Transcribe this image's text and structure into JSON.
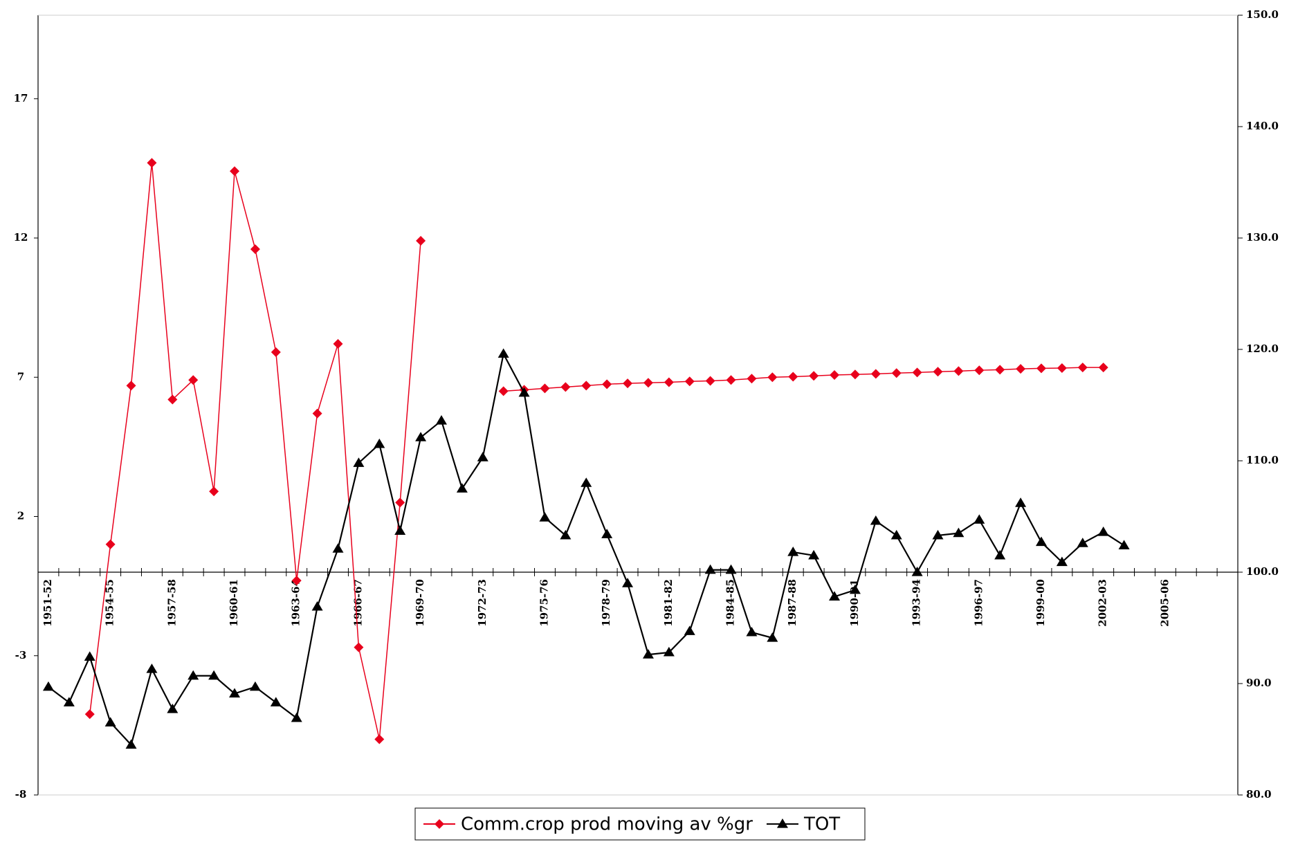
{
  "chart_data": {
    "type": "line",
    "categories": [
      "1951-52",
      null,
      null,
      "1954-55",
      null,
      null,
      "1957-58",
      null,
      null,
      "1960-61",
      null,
      null,
      "1963-64",
      null,
      null,
      "1966-67",
      null,
      null,
      "1969-70",
      null,
      null,
      "1972-73",
      null,
      null,
      "1975-76",
      null,
      null,
      "1978-79",
      null,
      null,
      "1981-82",
      null,
      null,
      "1984-85",
      null,
      null,
      "1987-88",
      null,
      null,
      "1990-91",
      null,
      null,
      "1993-94",
      null,
      null,
      "1996-97",
      null,
      null,
      "1999-00",
      null,
      null,
      "2002-03",
      null,
      null,
      "2005-06",
      null,
      null,
      null
    ],
    "series": [
      {
        "name": "Comm.crop prod moving av %gr",
        "color": "#e8001c",
        "marker": "diamond",
        "axis": "y",
        "values": [
          null,
          null,
          -5.1,
          1.0,
          6.7,
          14.7,
          6.2,
          6.9,
          2.9,
          14.4,
          11.6,
          7.9,
          -0.3,
          5.7,
          8.2,
          -2.7,
          -6.0,
          2.5,
          11.9,
          null,
          null,
          null,
          6.5,
          6.55,
          6.6,
          6.65,
          6.7,
          6.75,
          6.78,
          6.8,
          6.82,
          6.85,
          6.87,
          6.9,
          6.95,
          7.0,
          7.02,
          7.05,
          7.08,
          7.1,
          7.12,
          7.15,
          7.17,
          7.2,
          7.22,
          7.25,
          7.27,
          7.3,
          7.32,
          7.33,
          7.35,
          7.35,
          null,
          null,
          null,
          null,
          null,
          null
        ]
      },
      {
        "name": "TOT",
        "color": "#000000",
        "marker": "triangle",
        "axis": "y2",
        "values": [
          89.7,
          88.3,
          92.4,
          86.5,
          84.5,
          91.3,
          87.7,
          90.7,
          90.7,
          89.1,
          89.7,
          88.3,
          86.9,
          96.9,
          102.1,
          109.8,
          111.5,
          103.7,
          112.1,
          113.6,
          107.5,
          110.3,
          119.6,
          116.1,
          104.9,
          103.3,
          108.0,
          103.4,
          99.0,
          92.6,
          92.8,
          94.7,
          100.2,
          100.2,
          94.6,
          94.1,
          101.8,
          101.5,
          97.8,
          98.4,
          104.6,
          103.3,
          100.0,
          103.3,
          103.5,
          104.7,
          101.5,
          106.2,
          102.7,
          100.9,
          102.6,
          103.6,
          102.4,
          null,
          null,
          null,
          null,
          null
        ]
      }
    ],
    "ylim": [
      -8,
      20
    ],
    "yticks": [
      -8,
      -3,
      2,
      7,
      12,
      17
    ],
    "y2lim": [
      80,
      150
    ],
    "y2ticks": [
      {
        "value": 80,
        "label": "80.0"
      },
      {
        "value": 90,
        "label": "90.0"
      },
      {
        "value": 100,
        "label": "100.0"
      },
      {
        "value": 110,
        "label": "110.0"
      },
      {
        "value": 120,
        "label": "120.0"
      },
      {
        "value": 130,
        "label": "130.0"
      },
      {
        "value": 140,
        "label": "140.0"
      },
      {
        "value": 150,
        "label": "150.0"
      }
    ],
    "grid": false,
    "legend": "bottom"
  }
}
